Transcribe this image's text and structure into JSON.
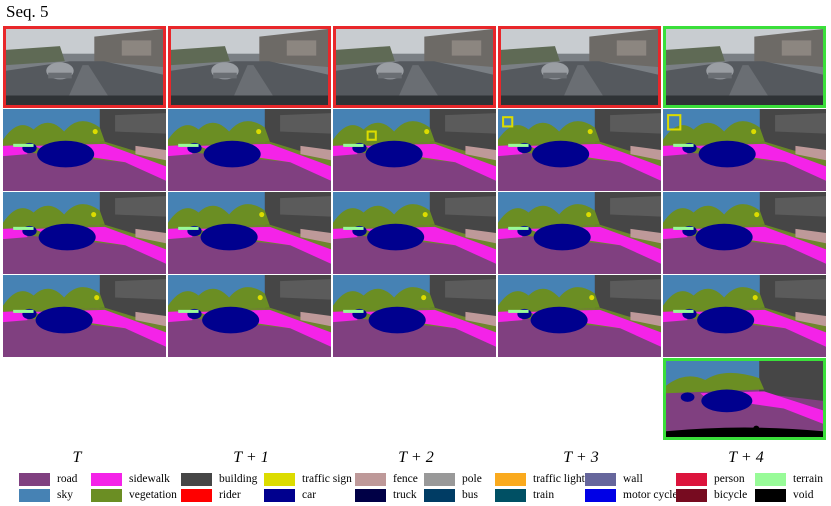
{
  "title": "Seq. 5",
  "colors": {
    "road": "#804080",
    "sidewalk": "#f423e8",
    "building": "#464646",
    "vegetation": "#6b8e23",
    "sky": "#4682b4",
    "car": "#00008e",
    "traffic_sign": "#dcdc00",
    "terrain": "#98fb98",
    "fence": "#be9999",
    "void": "#000000",
    "highlight_red": "#e8272a",
    "highlight_green": "#3adf3a"
  },
  "column_labels": [
    "T",
    "T + 1",
    "T + 2",
    "T + 3",
    "T + 4"
  ],
  "legend": [
    {
      "label": "road",
      "color": "#804080"
    },
    {
      "label": "sidewalk",
      "color": "#f423e8"
    },
    {
      "label": "building",
      "color": "#464646"
    },
    {
      "label": "traffic sign",
      "color": "#dcdc00"
    },
    {
      "label": "fence",
      "color": "#be9999"
    },
    {
      "label": "pole",
      "color": "#999999"
    },
    {
      "label": "traffic light",
      "color": "#faaa1e"
    },
    {
      "label": "wall",
      "color": "#66669c"
    },
    {
      "label": "person",
      "color": "#dc143c"
    },
    {
      "label": "terrain",
      "color": "#98fb98"
    },
    {
      "label": "sky",
      "color": "#4682b4"
    },
    {
      "label": "vegetation",
      "color": "#6b8e23"
    },
    {
      "label": "rider",
      "color": "#ff0000"
    },
    {
      "label": "car",
      "color": "#00008e"
    },
    {
      "label": "truck",
      "color": "#000046"
    },
    {
      "label": "bus",
      "color": "#003c64"
    },
    {
      "label": "train",
      "color": "#005064"
    },
    {
      "label": "motor cycle",
      "color": "#0000e6"
    },
    {
      "label": "bicycle",
      "color": "#770b20"
    },
    {
      "label": "void",
      "color": "#000000"
    }
  ]
}
